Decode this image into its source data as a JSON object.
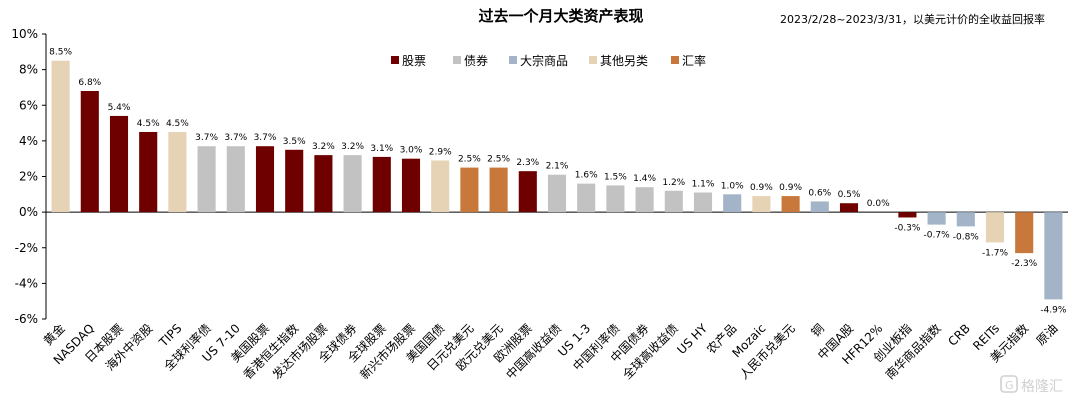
{
  "chart_data": {
    "type": "bar",
    "title": "过去一个月大类资产表现",
    "subtitle": "2023/2/28~2023/3/31，以美元计价的全收益回报率",
    "ylim": [
      -6,
      10
    ],
    "yticks": [
      "10%",
      "8%",
      "6%",
      "4%",
      "2%",
      "0%",
      "-2%",
      "-4%",
      "-6%"
    ],
    "ytick_values": [
      10,
      8,
      6,
      4,
      2,
      0,
      -2,
      -4,
      -6
    ],
    "legend": {
      "placement": "top-center",
      "items": [
        {
          "name": "股票",
          "color": "#6e0000"
        },
        {
          "name": "债券",
          "color": "#c2c2c2"
        },
        {
          "name": "大宗商品",
          "color": "#a3b3c8"
        },
        {
          "name": "其他另类",
          "color": "#e6d3b5"
        },
        {
          "name": "汇率",
          "color": "#c8783a"
        }
      ]
    },
    "categories": [
      "黄金",
      "NASDAQ",
      "日本股票",
      "海外中资股",
      "TIPS",
      "全球利率债",
      "US 7-10",
      "美国股票",
      "香港恒生指数",
      "发达市场股票",
      "全球债券",
      "全球股票",
      "新兴市场股票",
      "美国国债",
      "日元兑美元",
      "欧元兑美元",
      "欧洲股票",
      "中国高收益债",
      "US 1-3",
      "中国利率债",
      "中国债券",
      "全球高收益债",
      "US HY",
      "农产品",
      "Mozaic",
      "人民币兑美元",
      "铜",
      "中国A股",
      "HFR12%",
      "创业板指",
      "南华商品指数",
      "CRB",
      "REITs",
      "美元指数",
      "原油"
    ],
    "values": [
      8.5,
      6.8,
      5.4,
      4.5,
      4.5,
      3.7,
      3.7,
      3.7,
      3.5,
      3.2,
      3.2,
      3.1,
      3.0,
      2.9,
      2.5,
      2.5,
      2.3,
      2.1,
      1.6,
      1.5,
      1.4,
      1.2,
      1.1,
      1.0,
      0.9,
      0.9,
      0.6,
      0.5,
      0.0,
      -0.3,
      -0.7,
      -0.8,
      -1.7,
      -2.3,
      -4.9
    ],
    "value_labels": [
      "8.5%",
      "6.8%",
      "5.4%",
      "4.5%",
      "4.5%",
      "3.7%",
      "3.7%",
      "3.7%",
      "3.5%",
      "3.2%",
      "3.2%",
      "3.1%",
      "3.0%",
      "2.9%",
      "2.5%",
      "2.5%",
      "2.3%",
      "2.1%",
      "1.6%",
      "1.5%",
      "1.4%",
      "1.2%",
      "1.1%",
      "1.0%",
      "0.9%",
      "0.9%",
      "0.6%",
      "0.5%",
      "0.0%",
      "-0.3%",
      "-0.7%",
      "-0.8%",
      "-1.7%",
      "-2.3%",
      "-4.9%"
    ],
    "asset_class": [
      "其他另类",
      "股票",
      "股票",
      "股票",
      "其他另类",
      "债券",
      "债券",
      "股票",
      "股票",
      "股票",
      "债券",
      "股票",
      "股票",
      "其他另类",
      "汇率",
      "汇率",
      "股票",
      "债券",
      "债券",
      "债券",
      "债券",
      "债券",
      "债券",
      "大宗商品",
      "其他另类",
      "汇率",
      "大宗商品",
      "股票",
      "其他另类",
      "股票",
      "大宗商品",
      "大宗商品",
      "其他另类",
      "汇率",
      "大宗商品"
    ],
    "grid": false
  },
  "watermark": "格隆汇"
}
